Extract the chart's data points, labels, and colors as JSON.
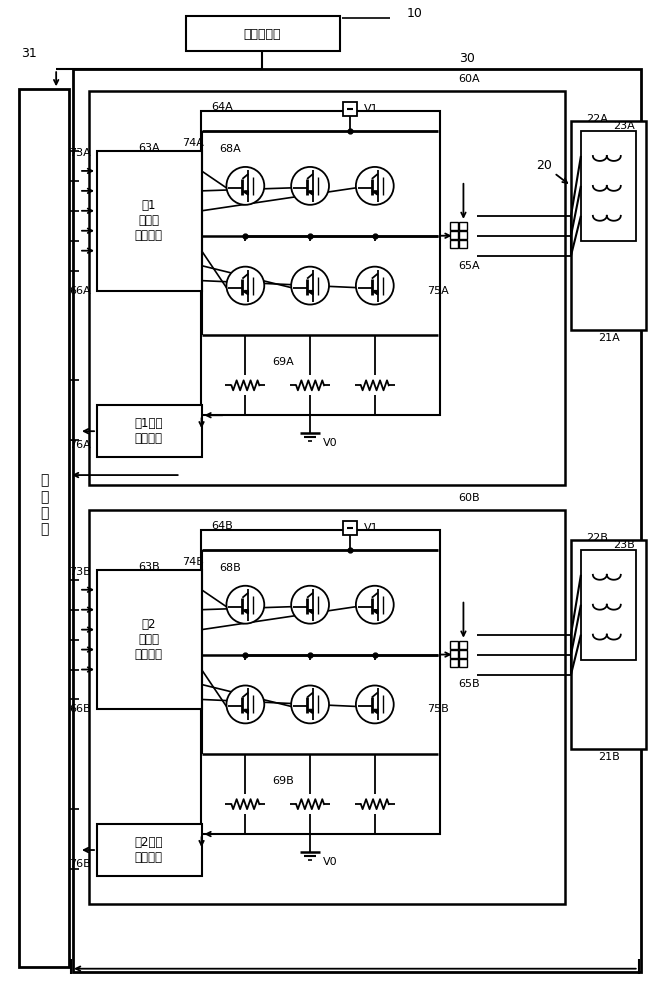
{
  "bg_color": "#ffffff",
  "line_color": "#000000",
  "labels": {
    "torque_sensor": "扭矩传感器",
    "inv_drive_A": "第1\n逆变器\n驱动电路",
    "inv_drive_B": "第2\n逆变器\n驱动电路",
    "current_det_A": "第1电流\n检测电路",
    "current_det_B": "第2电流\n检测电路",
    "calc_device": "运\n算\n装\n置",
    "V1": "V1",
    "V0": "V0",
    "n10": "10",
    "n20": "20",
    "n21A": "21A",
    "n21B": "21B",
    "n22A": "22A",
    "n22B": "22B",
    "n23A": "23A",
    "n23B": "23B",
    "n30": "30",
    "n31": "31",
    "n60A": "60A",
    "n60B": "60B",
    "n63A": "63A",
    "n63B": "63B",
    "n64A": "64A",
    "n64B": "64B",
    "n65A": "65A",
    "n65B": "65B",
    "n66A": "66A",
    "n66B": "66B",
    "n68A": "68A",
    "n68B": "68B",
    "n69A": "69A",
    "n69B": "69B",
    "n73A": "73A",
    "n73B": "73B",
    "n74A": "74A",
    "n74B": "74B",
    "n75A": "75A",
    "n75B": "75B",
    "n76A": "76A",
    "n76B": "76B"
  }
}
